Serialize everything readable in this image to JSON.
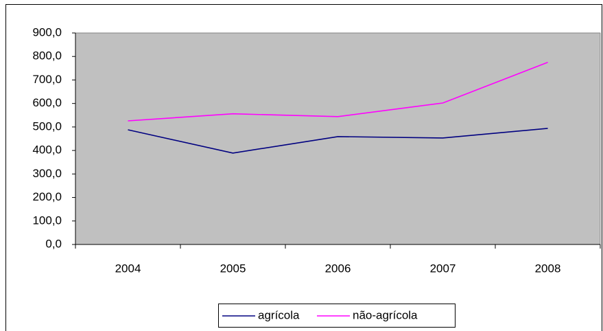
{
  "chart_data": {
    "type": "line",
    "categories": [
      "2004",
      "2005",
      "2006",
      "2007",
      "2008"
    ],
    "series": [
      {
        "name": "agrícola",
        "color": "#000080",
        "values": [
          488,
          389,
          459,
          453,
          494
        ]
      },
      {
        "name": "não-agrícola",
        "color": "#ff00ff",
        "values": [
          526,
          556,
          544,
          602,
          775
        ]
      }
    ],
    "ylim": [
      0,
      900
    ],
    "yticks": [
      {
        "value": 0,
        "label": "0,0"
      },
      {
        "value": 100,
        "label": "100,0"
      },
      {
        "value": 200,
        "label": "200,0"
      },
      {
        "value": 300,
        "label": "300,0"
      },
      {
        "value": 400,
        "label": "400,0"
      },
      {
        "value": 500,
        "label": "500,0"
      },
      {
        "value": 600,
        "label": "600,0"
      },
      {
        "value": 700,
        "label": "700,0"
      },
      {
        "value": 800,
        "label": "800,0"
      },
      {
        "value": 900,
        "label": "900,0"
      }
    ],
    "plot_background": "#c0c0c0"
  }
}
